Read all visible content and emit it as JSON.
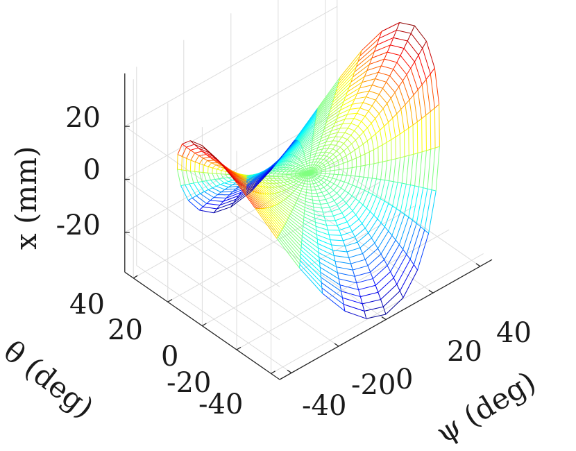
{
  "chart_data": {
    "type": "surface",
    "xlabel": "ψ (deg)",
    "ylabel": "θ (deg)",
    "zlabel": "x  (mm)",
    "x_ticks": [
      "-40",
      "-20",
      "0",
      "20",
      "40"
    ],
    "y_ticks": [
      "-40",
      "-20",
      "0",
      "20",
      "40"
    ],
    "z_ticks": [
      "-20",
      "0",
      "20"
    ],
    "xlim": [
      -45,
      45
    ],
    "ylim": [
      -45,
      45
    ],
    "zlim": [
      -35,
      40
    ],
    "grid": true,
    "colormap": "jet",
    "function": "z = 0.0163*(psi^2 - theta^2)",
    "surface_domain": "polar mesh, radius 0–45 deg, 36 angular steps",
    "corner_points": [
      {
        "psi": 45,
        "theta": 0,
        "z": 33
      },
      {
        "psi": -45,
        "theta": 0,
        "z": 33
      },
      {
        "psi": 0,
        "theta": 45,
        "z": -33
      },
      {
        "psi": 0,
        "theta": -45,
        "z": -33
      }
    ]
  }
}
